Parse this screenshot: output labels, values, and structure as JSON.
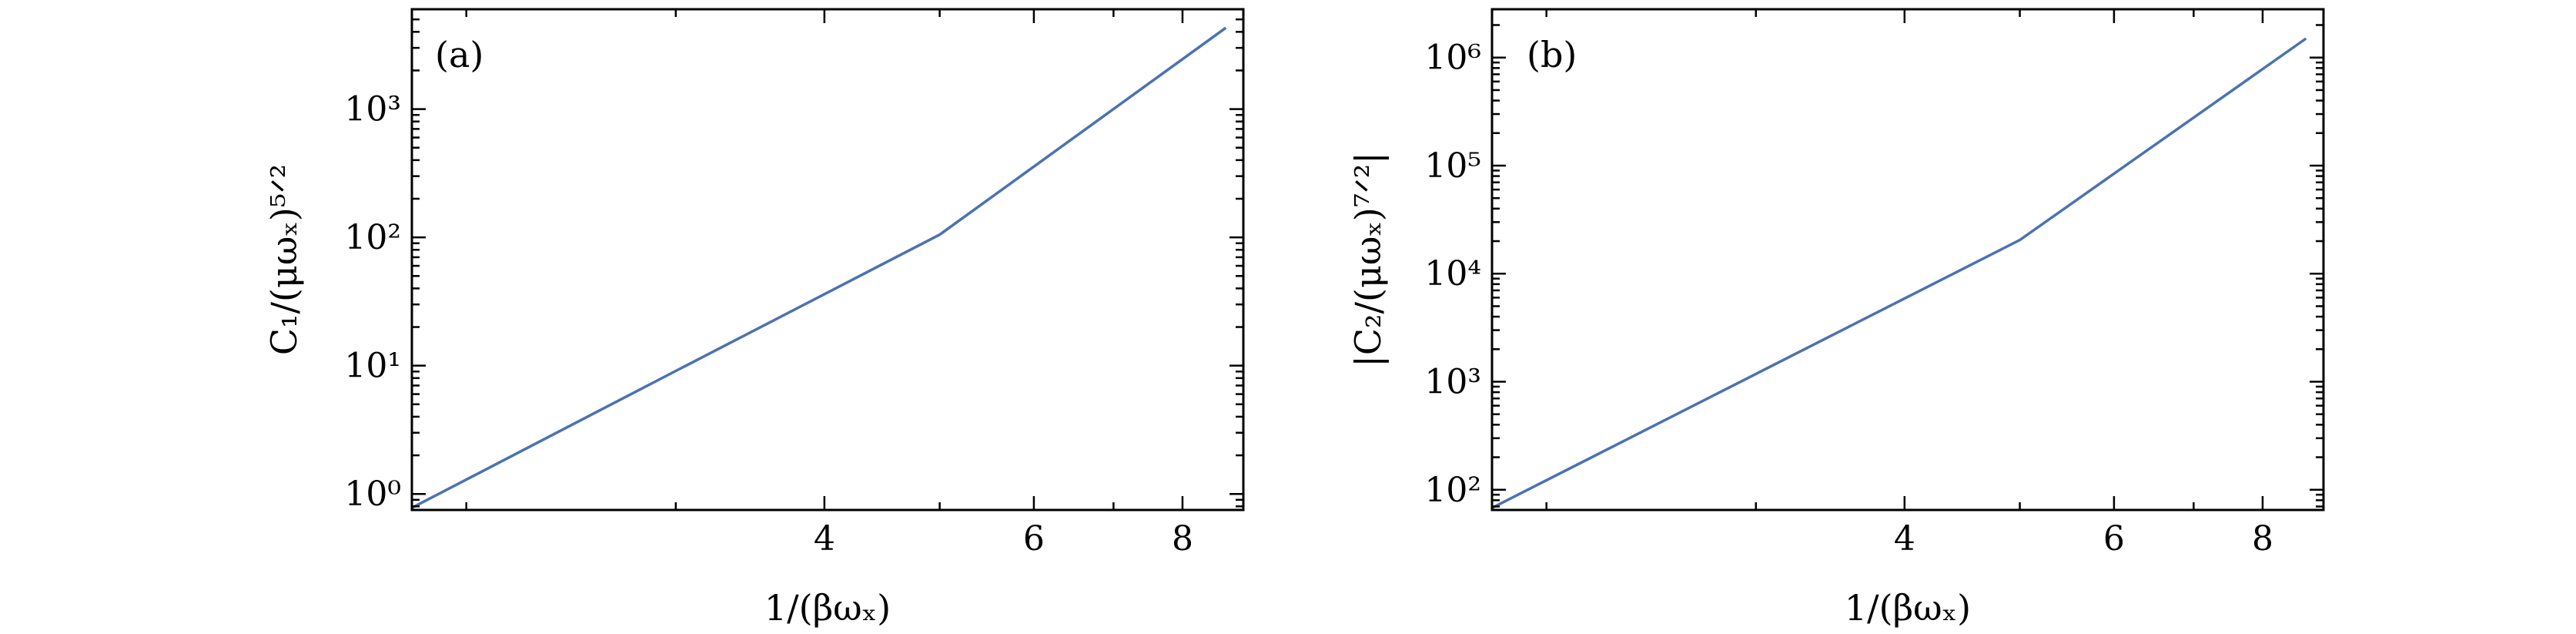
{
  "colors": {
    "line": "#4c72b0"
  },
  "chart_data": [
    {
      "type": "line",
      "panel_label": "(a)",
      "xlabel": "1/(βωₓ)",
      "ylabel": "C₁/(μωₓ)⁵ᐟ²",
      "xscale": "log",
      "yscale": "log",
      "xlim": [
        1.8,
        9.0
      ],
      "ylim": [
        0.75,
        6000
      ],
      "x_ticks": [
        4,
        6,
        8
      ],
      "x_tick_labels": [
        "4",
        "6",
        "8"
      ],
      "y_ticks": [
        1,
        10,
        100,
        1000
      ],
      "y_tick_labels": [
        "10⁰",
        "10¹",
        "10²",
        "10³"
      ],
      "grid": false,
      "series": [
        {
          "x": [
            1.8,
            3,
            5,
            8.7
          ],
          "y": [
            0.78,
            9.1,
            105,
            4300
          ]
        }
      ]
    },
    {
      "type": "line",
      "panel_label": "(b)",
      "xlabel": "1/(βωₓ)",
      "ylabel": "|C₂/(μωₓ)⁷ᐟ²|",
      "xscale": "log",
      "yscale": "log",
      "xlim": [
        1.8,
        9.0
      ],
      "ylim": [
        65,
        2800000
      ],
      "x_ticks": [
        4,
        6,
        8
      ],
      "x_tick_labels": [
        "4",
        "6",
        "8"
      ],
      "y_ticks": [
        100,
        1000,
        10000,
        100000,
        1000000
      ],
      "y_tick_labels": [
        "10²",
        "10³",
        "10⁴",
        "10⁵",
        "10⁶"
      ],
      "grid": false,
      "series": [
        {
          "x": [
            1.8,
            3,
            5,
            8.7
          ],
          "y": [
            68,
            1180,
            20500,
            1500000
          ]
        }
      ]
    }
  ]
}
